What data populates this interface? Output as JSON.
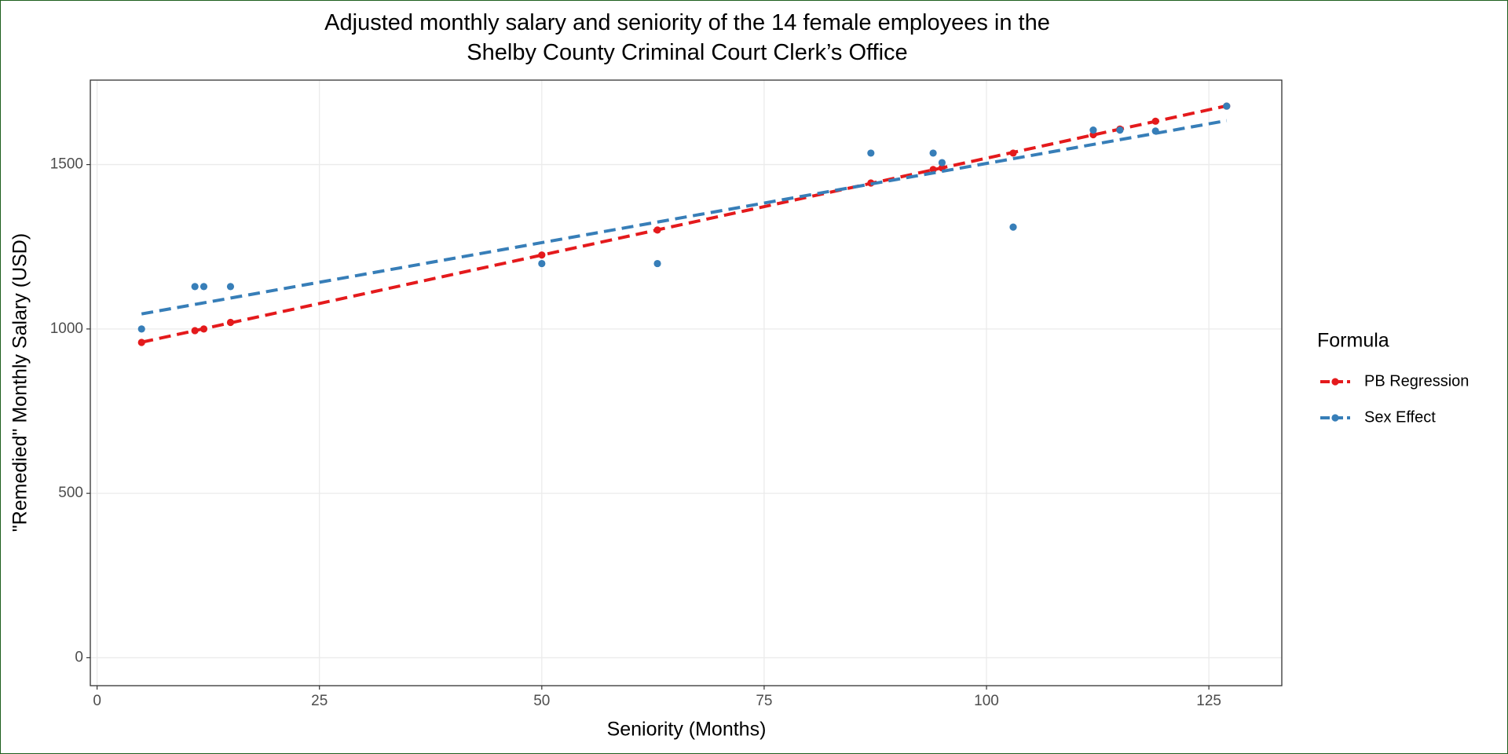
{
  "chart_data": {
    "type": "scatter",
    "title": "Adjusted monthly salary and seniority of the 14 female employees in the\nShelby County Criminal Court Clerk’s Office",
    "x_label": "Seniority (Months)",
    "y_label": "\"Remedied\" Monthly Salary (USD)",
    "legend_title": "Formula",
    "legend_position": "right",
    "trend_line": "linear",
    "grid": true,
    "x": [
      5,
      11,
      12,
      15,
      50,
      63,
      87,
      94,
      95,
      103,
      112,
      115,
      119,
      127
    ],
    "series": [
      {
        "name": "PB Regression",
        "color": "#E41A1C",
        "values": [
          959,
          995,
          1000,
          1020,
          1225,
          1301,
          1444,
          1485,
          1490,
          1535,
          1591,
          1608,
          1632,
          1678
        ]
      },
      {
        "name": "Sex Effect",
        "color": "#377EB8",
        "values": [
          1000,
          1129,
          1129,
          1129,
          1199,
          1199,
          1535,
          1535,
          1506,
          1310,
          1605,
          1605,
          1602,
          1678
        ]
      }
    ],
    "xlim": [
      -0.76,
      133.2
    ],
    "xticks": [
      0,
      25,
      50,
      75,
      100,
      125
    ],
    "ylim": [
      -85,
      1757
    ],
    "yticks": [
      0,
      500,
      1000,
      1500
    ]
  }
}
